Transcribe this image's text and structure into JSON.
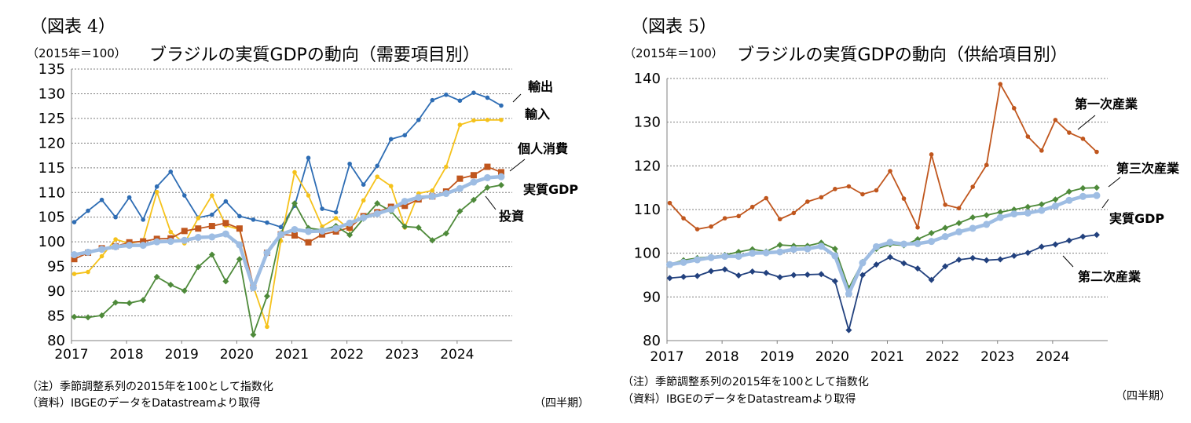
{
  "panels": [
    {
      "figure_label": "（図表 4）",
      "unit": "（2015年＝100）",
      "title": "ブラジルの実質GDPの動向（需要項目別）",
      "note1": "（注）季節調整系列の2015年を100として指数化",
      "note2": "（資料）IBGEのデータをDatastreamより取得",
      "period": "（四半期）"
    },
    {
      "figure_label": "（図表 5）",
      "unit": "（2015年＝100）",
      "title": "ブラジルの実質GDPの動向（供給項目別）",
      "note1": "（注）季節調整系列の2015年を100として指数化",
      "note2": "（資料）IBGEのデータをDatastreamより取得",
      "period": "（四半期）"
    }
  ],
  "chart_data": [
    {
      "type": "line",
      "quarters": [
        "2017Q1",
        "2017Q2",
        "2017Q3",
        "2017Q4",
        "2018Q1",
        "2018Q2",
        "2018Q3",
        "2018Q4",
        "2019Q1",
        "2019Q2",
        "2019Q3",
        "2019Q4",
        "2020Q1",
        "2020Q2",
        "2020Q3",
        "2020Q4",
        "2021Q1",
        "2021Q2",
        "2021Q3",
        "2021Q4",
        "2022Q1",
        "2022Q2",
        "2022Q3",
        "2022Q4",
        "2023Q1",
        "2023Q2",
        "2023Q3",
        "2023Q4",
        "2024Q1",
        "2024Q2",
        "2024Q3",
        "2024Q4"
      ],
      "x_tick_labels": [
        "2017",
        "2018",
        "2019",
        "2020",
        "2021",
        "2022",
        "2023",
        "2024"
      ],
      "ylim": [
        80,
        135
      ],
      "yticks": [
        80,
        85,
        90,
        95,
        100,
        105,
        110,
        115,
        120,
        125,
        130,
        135
      ],
      "grid": true,
      "series": [
        {
          "name": "輸出",
          "color": "#2E6DB4",
          "marker": "circle",
          "width": 1.8,
          "values": [
            104.0,
            106.3,
            108.5,
            105.0,
            109.0,
            104.5,
            111.2,
            114.2,
            109.4,
            104.9,
            105.5,
            108.2,
            105.2,
            104.5,
            103.9,
            103.0,
            107.3,
            117.0,
            106.7,
            106.0,
            115.8,
            111.6,
            115.4,
            120.8,
            121.6,
            124.7,
            128.7,
            129.8,
            128.6,
            130.2,
            129.2,
            127.6
          ]
        },
        {
          "name": "輸入",
          "color": "#F5C21B",
          "marker": "circle",
          "width": 1.8,
          "values": [
            93.5,
            93.9,
            97.1,
            100.5,
            99.7,
            100.2,
            110.1,
            102.0,
            99.7,
            104.8,
            109.4,
            103.3,
            102.5,
            91.0,
            82.8,
            100.2,
            114.1,
            109.4,
            103.1,
            104.8,
            102.5,
            108.4,
            113.2,
            111.3,
            102.9,
            109.8,
            110.4,
            115.2,
            123.7,
            124.6,
            124.7,
            124.7
          ]
        },
        {
          "name": "個人消費",
          "color": "#C0561D",
          "marker": "square",
          "width": 1.8,
          "values": [
            96.5,
            97.8,
            98.7,
            99.1,
            99.9,
            100.1,
            100.6,
            100.7,
            102.2,
            102.7,
            103.2,
            103.8,
            102.7,
            91.2,
            97.8,
            101.5,
            101.3,
            99.9,
            101.5,
            102.1,
            102.9,
            105.2,
            106.0,
            107.1,
            107.3,
            108.6,
            109.2,
            110.2,
            112.8,
            113.5,
            115.2,
            114.1
          ]
        },
        {
          "name": "投資",
          "color": "#4E8A3A",
          "marker": "diamond",
          "width": 1.8,
          "values": [
            84.8,
            84.7,
            85.1,
            87.7,
            87.6,
            88.2,
            92.9,
            91.3,
            90.1,
            94.9,
            97.4,
            92.0,
            96.5,
            81.2,
            89.0,
            101.7,
            107.8,
            102.8,
            102.4,
            103.2,
            101.4,
            104.7,
            107.8,
            106.2,
            103.1,
            102.9,
            100.3,
            101.7,
            106.2,
            108.5,
            111.0,
            111.5
          ]
        },
        {
          "name": "実質GDP",
          "color": "#9EBDE3",
          "marker": "circle",
          "width": 4.5,
          "values": [
            97.4,
            97.9,
            98.5,
            99.0,
            99.3,
            99.3,
            100.0,
            100.1,
            100.3,
            100.9,
            101.0,
            101.6,
            99.4,
            90.7,
            97.8,
            101.5,
            102.5,
            102.1,
            102.2,
            102.7,
            103.8,
            104.9,
            105.7,
            106.6,
            108.2,
            109.0,
            109.2,
            109.8,
            110.8,
            112.1,
            113.0,
            113.2
          ]
        }
      ],
      "annotations": [
        "輸出",
        "輸入",
        "個人消費",
        "実質GDP",
        "投資"
      ]
    },
    {
      "type": "line",
      "quarters": [
        "2017Q1",
        "2017Q2",
        "2017Q3",
        "2017Q4",
        "2018Q1",
        "2018Q2",
        "2018Q3",
        "2018Q4",
        "2019Q1",
        "2019Q2",
        "2019Q3",
        "2019Q4",
        "2020Q1",
        "2020Q2",
        "2020Q3",
        "2020Q4",
        "2021Q1",
        "2021Q2",
        "2021Q3",
        "2021Q4",
        "2022Q1",
        "2022Q2",
        "2022Q3",
        "2022Q4",
        "2023Q1",
        "2023Q2",
        "2023Q3",
        "2023Q4",
        "2024Q1",
        "2024Q2",
        "2024Q3",
        "2024Q4"
      ],
      "x_tick_labels": [
        "2017",
        "2018",
        "2019",
        "2020",
        "2021",
        "2022",
        "2023",
        "2024"
      ],
      "ylim": [
        80,
        140
      ],
      "yticks": [
        80,
        90,
        100,
        110,
        120,
        130,
        140
      ],
      "grid": true,
      "series": [
        {
          "name": "第一次産業",
          "color": "#C0561D",
          "marker": "circle",
          "width": 1.8,
          "values": [
            111.5,
            108.0,
            105.5,
            106.1,
            108.0,
            108.5,
            110.6,
            112.6,
            107.8,
            109.2,
            111.8,
            112.8,
            114.7,
            115.3,
            113.5,
            114.4,
            118.8,
            112.5,
            105.9,
            122.6,
            111.1,
            110.3,
            115.2,
            120.2,
            138.7,
            133.2,
            126.7,
            123.5,
            130.5,
            127.6,
            126.2,
            123.2
          ]
        },
        {
          "name": "第三次産業",
          "color": "#4E8A3A",
          "marker": "diamond",
          "width": 1.8,
          "values": [
            97.5,
            98.4,
            98.9,
            99.2,
            99.6,
            100.3,
            100.9,
            100.4,
            101.9,
            101.7,
            101.7,
            102.4,
            101.0,
            92.0,
            98.0,
            101.0,
            102.0,
            101.8,
            103.2,
            104.6,
            105.8,
            106.9,
            108.2,
            108.7,
            109.4,
            110.0,
            110.6,
            111.2,
            112.3,
            114.1,
            114.9,
            115.0
          ]
        },
        {
          "name": "第二次産業",
          "color": "#22417E",
          "marker": "diamond",
          "width": 1.8,
          "values": [
            94.3,
            94.6,
            94.8,
            95.9,
            96.3,
            94.9,
            95.8,
            95.5,
            94.5,
            95.0,
            95.1,
            95.2,
            93.6,
            82.4,
            95.0,
            97.4,
            99.1,
            97.7,
            96.5,
            93.9,
            97.0,
            98.5,
            98.9,
            98.4,
            98.6,
            99.4,
            100.1,
            101.5,
            102.0,
            102.9,
            103.8,
            104.2
          ]
        },
        {
          "name": "実質GDP",
          "color": "#9EBDE3",
          "marker": "circle",
          "width": 4.5,
          "values": [
            97.4,
            97.9,
            98.5,
            99.0,
            99.3,
            99.3,
            100.0,
            100.1,
            100.3,
            100.9,
            101.0,
            101.6,
            99.4,
            90.7,
            97.8,
            101.5,
            102.5,
            102.1,
            102.2,
            102.7,
            103.8,
            104.9,
            105.7,
            106.6,
            108.2,
            109.0,
            109.2,
            109.8,
            110.8,
            112.1,
            113.0,
            113.2
          ]
        }
      ],
      "annotations": [
        "第一次産業",
        "第三次産業",
        "実質GDP",
        "第二次産業"
      ]
    }
  ]
}
